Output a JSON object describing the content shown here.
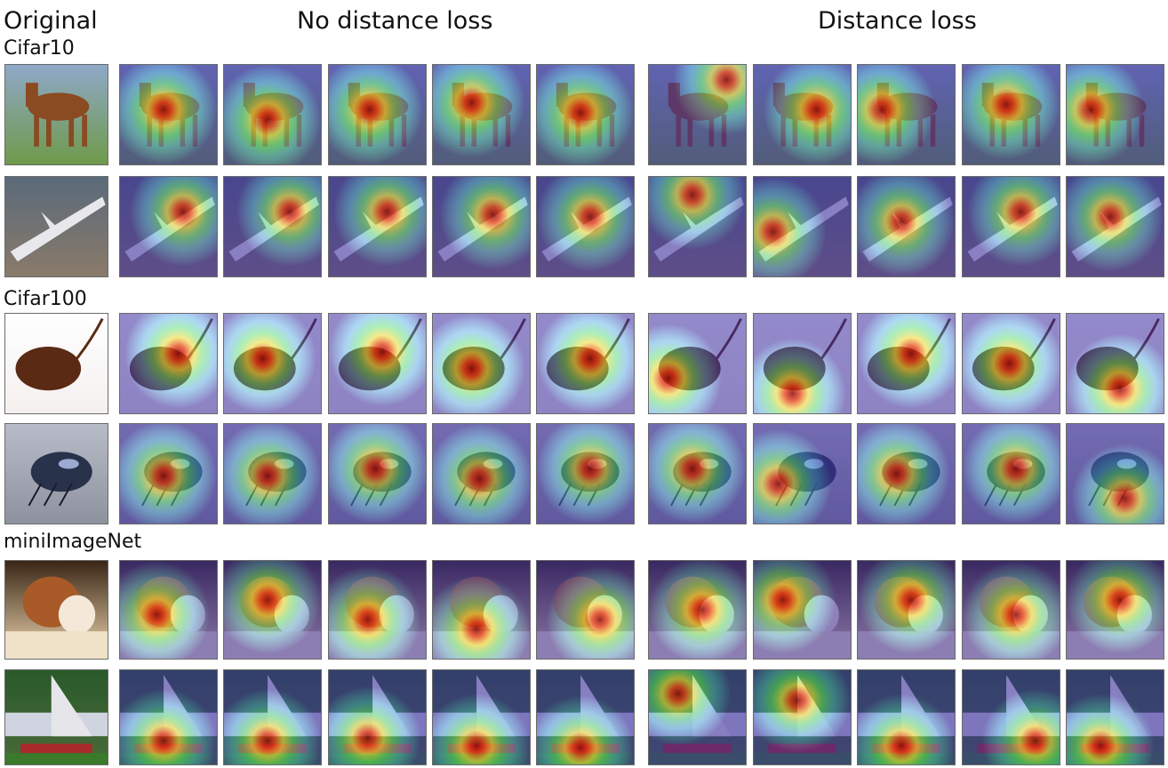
{
  "headers": {
    "original": "Original",
    "no_distance_loss": "No distance loss",
    "distance_loss": "Distance loss"
  },
  "datasets": [
    {
      "name": "Cifar10",
      "rows": [
        {
          "subject": "horse",
          "palette": {
            "bg_top": "#8fa8c8",
            "bg_bottom": "#6f9a4a",
            "subject": "#8a4a22"
          }
        },
        {
          "subject": "airplane",
          "palette": {
            "bg_top": "#5a6a7a",
            "bg_bottom": "#8a7a6a",
            "subject": "#e8e8ec"
          }
        }
      ]
    },
    {
      "name": "Cifar100",
      "rows": [
        {
          "subject": "shrew",
          "palette": {
            "bg_top": "#ffffff",
            "bg_bottom": "#f4f0ee",
            "subject": "#5a2a14"
          }
        },
        {
          "subject": "beetle",
          "palette": {
            "bg_top": "#b8bcc8",
            "bg_bottom": "#8e929e",
            "subject": "#28324a"
          }
        }
      ]
    },
    {
      "name": "miniImageNet",
      "rows": [
        {
          "subject": "dog",
          "palette": {
            "bg_top": "#3a2616",
            "bg_bottom": "#f0d8b0",
            "subject": "#a85a28"
          }
        },
        {
          "subject": "sailboat",
          "palette": {
            "bg_top": "#2a5a2a",
            "bg_bottom": "#4a6a3a",
            "subject": "#e6e6ea"
          }
        }
      ]
    }
  ],
  "heatmap_colors": {
    "cold": "#3a2aa0",
    "cool": "#4aa8e8",
    "mid": "#5ce07a",
    "warm": "#f0e040",
    "hot": "#e83a14",
    "peak": "#8a0a0a"
  }
}
